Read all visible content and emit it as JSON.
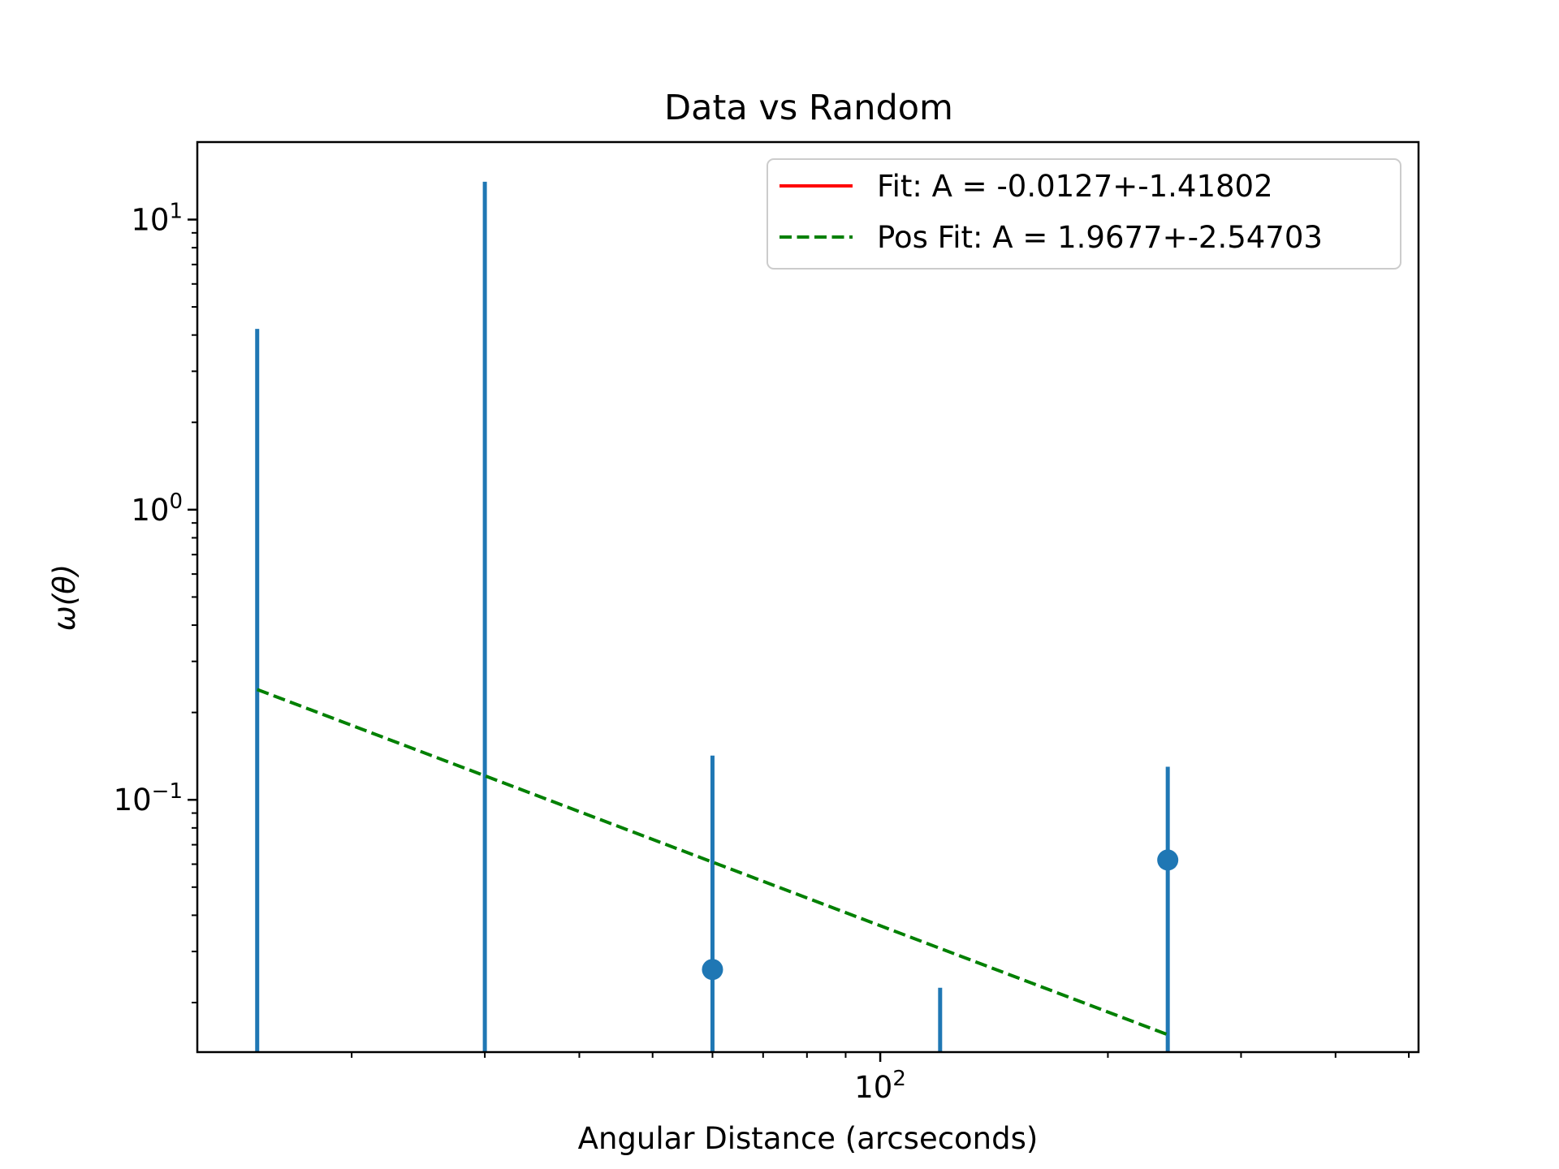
{
  "chart_data": {
    "type": "scatter",
    "title": "Data vs Random",
    "xlabel": "Angular Distance (arcseconds)",
    "ylabel": "ω(θ)",
    "xscale": "log",
    "yscale": "log",
    "xlim": [
      12.5,
      515
    ],
    "ylim": [
      0.0135,
      18.5
    ],
    "x_ticks": [
      {
        "value": 100,
        "base": "10",
        "exp": "2"
      }
    ],
    "y_ticks": [
      {
        "value": 0.1,
        "base": "10",
        "exp": "−1"
      },
      {
        "value": 1,
        "base": "10",
        "exp": "0"
      },
      {
        "value": 10,
        "base": "10",
        "exp": "1"
      }
    ],
    "grid": false,
    "legend_position": "top-right",
    "colors": {
      "points": "#1f77b4",
      "fit": "#ff0000",
      "pos_fit": "#008000",
      "axes": "#000000"
    },
    "errorbars": [
      {
        "x": 15,
        "y": null,
        "ylow": 0.0135,
        "yhigh": 4.2
      },
      {
        "x": 30,
        "y": null,
        "ylow": 0.0135,
        "yhigh": 13.5
      },
      {
        "x": 60,
        "y": 0.026,
        "ylow": 0.0135,
        "yhigh": 0.142
      },
      {
        "x": 120,
        "y": null,
        "ylow": 0.0135,
        "yhigh": 0.0225
      },
      {
        "x": 240,
        "y": 0.062,
        "ylow": 0.0135,
        "yhigh": 0.13
      }
    ],
    "series": [
      {
        "name": "Fit: A = -0.0127+-1.41802",
        "style": "solid",
        "x": [],
        "y": []
      },
      {
        "name": "Pos Fit: A = 1.9677+-2.54703",
        "style": "dashed",
        "x": [
          15,
          240
        ],
        "y": [
          0.24,
          0.0155
        ]
      }
    ]
  }
}
